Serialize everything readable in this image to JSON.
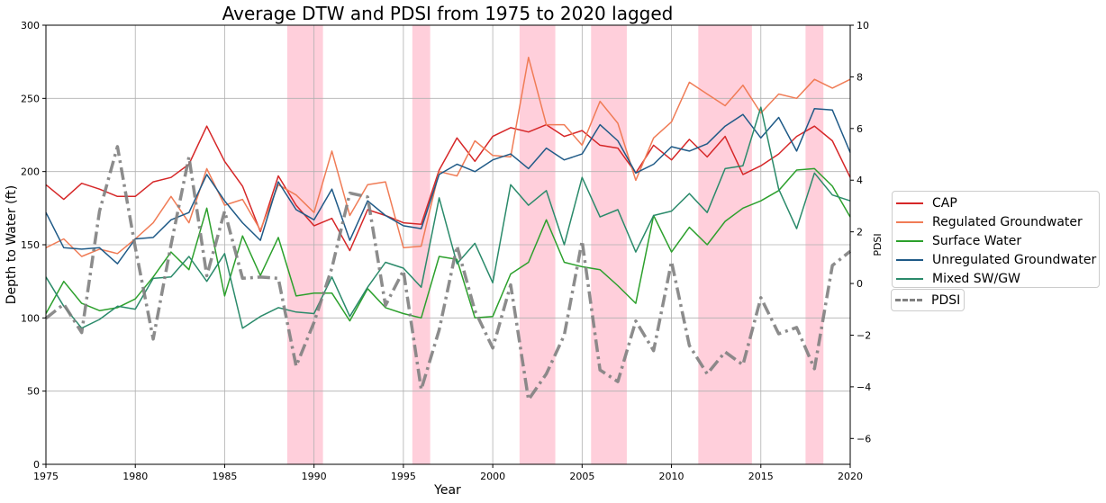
{
  "chart_data": {
    "type": "line",
    "title": "Average DTW and PDSI from 1975 to 2020 lagged",
    "xlabel": "Year",
    "ylabel": "Depth to Water (ft)",
    "ylabel_right": "PDSI",
    "xlim": [
      1975,
      2020
    ],
    "ylim": [
      0,
      300
    ],
    "ylim_right": [
      -7,
      10
    ],
    "x_ticks": [
      "1975",
      "1980",
      "1985",
      "1990",
      "1995",
      "2000",
      "2005",
      "2010",
      "2015",
      "2020"
    ],
    "y_ticks": [
      "0",
      "50",
      "100",
      "150",
      "200",
      "250",
      "300"
    ],
    "y_ticks_right": [
      "−6",
      "−4",
      "−2",
      "0",
      "2",
      "4",
      "6",
      "8",
      "10"
    ],
    "grid": true,
    "x": [
      1975,
      1976,
      1977,
      1978,
      1979,
      1980,
      1981,
      1982,
      1983,
      1984,
      1985,
      1986,
      1987,
      1988,
      1989,
      1990,
      1991,
      1992,
      1993,
      1994,
      1995,
      1996,
      1997,
      1998,
      1999,
      2000,
      2001,
      2002,
      2003,
      2004,
      2005,
      2006,
      2007,
      2008,
      2009,
      2010,
      2011,
      2012,
      2013,
      2014,
      2015,
      2016,
      2017,
      2018,
      2019,
      2020
    ],
    "series": [
      {
        "name": "CAP",
        "color": "#d62728",
        "style": "solid",
        "axis": "left",
        "values": [
          191,
          181,
          192,
          188,
          183,
          183,
          193,
          196,
          205,
          231,
          207,
          190,
          159,
          197,
          177,
          163,
          168,
          146,
          174,
          170,
          165,
          164,
          201,
          223,
          207,
          224,
          230,
          227,
          232,
          224,
          228,
          218,
          216,
          199,
          218,
          208,
          222,
          210,
          224,
          198,
          204,
          212,
          224,
          231,
          221,
          196
        ]
      },
      {
        "name": "Regulated Groundwater",
        "color": "#f07c56",
        "style": "solid",
        "axis": "left",
        "values": [
          148,
          154,
          142,
          147,
          144,
          154,
          165,
          183,
          165,
          202,
          177,
          181,
          160,
          191,
          184,
          172,
          214,
          170,
          191,
          193,
          148,
          149,
          200,
          197,
          221,
          211,
          210,
          278,
          232,
          232,
          218,
          248,
          233,
          194,
          223,
          234,
          261,
          253,
          245,
          259,
          240,
          253,
          250,
          263,
          257,
          263
        ]
      },
      {
        "name": "Surface Water",
        "color": "#2ca02c",
        "style": "solid",
        "axis": "left",
        "values": [
          103,
          125,
          110,
          105,
          107,
          113,
          128,
          145,
          133,
          175,
          115,
          156,
          129,
          155,
          115,
          117,
          117,
          98,
          120,
          107,
          103,
          100,
          142,
          140,
          100,
          101,
          130,
          138,
          167,
          138,
          135,
          133,
          122,
          110,
          170,
          145,
          162,
          150,
          166,
          175,
          180,
          187,
          201,
          202,
          190,
          169
        ]
      },
      {
        "name": "Unregulated Groundwater",
        "color": "#1f5a87",
        "style": "solid",
        "axis": "left",
        "values": [
          172,
          148,
          147,
          148,
          137,
          154,
          155,
          167,
          172,
          198,
          180,
          165,
          153,
          193,
          174,
          167,
          188,
          153,
          180,
          170,
          163,
          161,
          198,
          205,
          200,
          208,
          212,
          202,
          216,
          208,
          212,
          232,
          221,
          199,
          205,
          217,
          214,
          219,
          231,
          239,
          223,
          237,
          214,
          243,
          242,
          213
        ]
      },
      {
        "name": "Mixed SW/GW",
        "color": "#2a8a6a",
        "style": "solid",
        "axis": "left",
        "values": [
          128,
          108,
          93,
          99,
          108,
          106,
          127,
          128,
          142,
          125,
          144,
          93,
          101,
          107,
          104,
          103,
          128,
          101,
          121,
          138,
          134,
          121,
          182,
          137,
          151,
          124,
          191,
          177,
          187,
          150,
          196,
          169,
          174,
          145,
          170,
          173,
          185,
          172,
          202,
          204,
          244,
          188,
          161,
          199,
          184,
          180
        ]
      },
      {
        "name": "PDSI",
        "color": "#808080",
        "style": "dashdot",
        "axis": "right",
        "values": [
          -1.35,
          -0.8,
          -1.9,
          2.8,
          5.3,
          1.4,
          -2.15,
          1.5,
          4.9,
          0.3,
          2.8,
          0.2,
          0.25,
          0.2,
          -3.2,
          -1.5,
          0.6,
          3.5,
          3.35,
          -0.85,
          0.5,
          -4.1,
          -1.8,
          1.45,
          -1.05,
          -2.5,
          -0.05,
          -4.5,
          -3.5,
          -2.0,
          1.65,
          -3.35,
          -3.8,
          -1.45,
          -2.6,
          0.85,
          -2.4,
          -3.5,
          -2.65,
          -3.15,
          -0.55,
          -1.95,
          -1.7,
          -3.3,
          0.7,
          1.25
        ]
      }
    ],
    "shaded_periods": [
      [
        1988.5,
        1990.5
      ],
      [
        1995.5,
        1996.5
      ],
      [
        2001.5,
        2003.5
      ],
      [
        2005.5,
        2007.5
      ],
      [
        2011.5,
        2014.5
      ],
      [
        2017.5,
        2018.5
      ]
    ],
    "shade_color": "#ffb6c8",
    "legend_position": "center-right"
  }
}
